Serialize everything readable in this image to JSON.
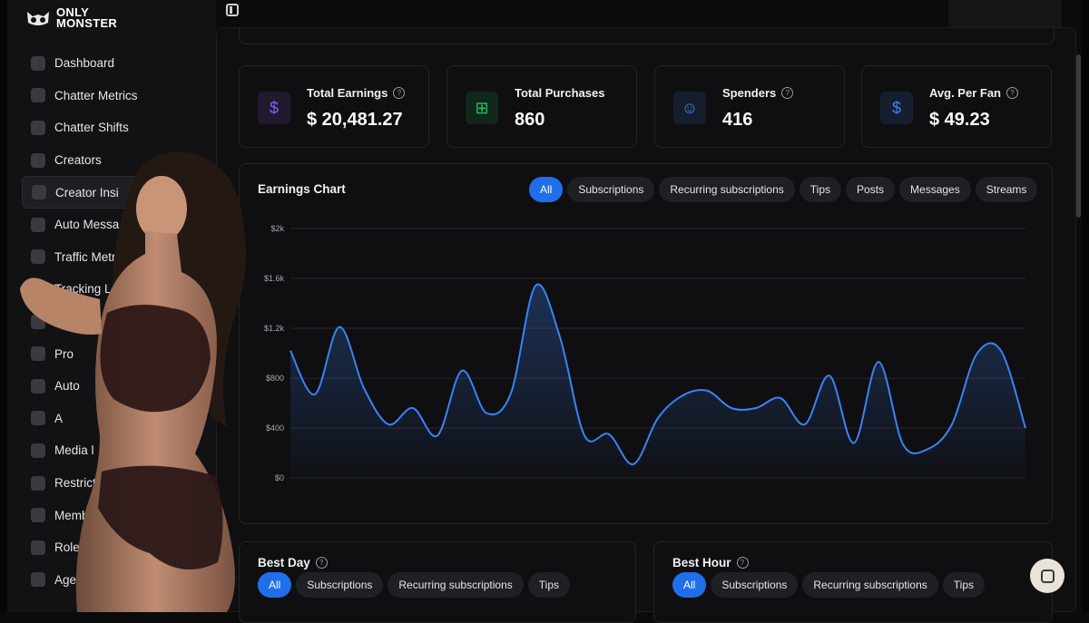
{
  "brand": {
    "name_line1": "ONLY",
    "name_line2": "MONSTER"
  },
  "sidebar": {
    "items": [
      {
        "label": "Dashboard",
        "icon": "dashboard-icon"
      },
      {
        "label": "Chatter Metrics",
        "icon": "chart-icon"
      },
      {
        "label": "Chatter Shifts",
        "icon": "calendar-icon"
      },
      {
        "label": "Creators",
        "icon": "creators-icon"
      },
      {
        "label": "Creator Insi",
        "icon": "bar-chart-icon",
        "active": true
      },
      {
        "label": "Auto Messa",
        "icon": "bolt-icon"
      },
      {
        "label": "Traffic Metr",
        "icon": "traffic-icon"
      },
      {
        "label": "Tracking L",
        "icon": "link-icon"
      },
      {
        "label": "Trial Links",
        "icon": "trial-link-icon"
      },
      {
        "label": "Pro",
        "icon": "pro-icon"
      },
      {
        "label": "Auto",
        "icon": "auto-icon"
      },
      {
        "label": "A",
        "icon": "ai-icon"
      },
      {
        "label": "Media l",
        "icon": "media-icon"
      },
      {
        "label": "Restrict",
        "icon": "restrict-icon"
      },
      {
        "label": "Membe",
        "icon": "members-icon"
      },
      {
        "label": "Roles",
        "icon": "lock-icon"
      },
      {
        "label": "Agen",
        "icon": "agency-icon"
      }
    ]
  },
  "stats": [
    {
      "label": "Total Earnings",
      "value": "$ 20,481.27",
      "icon": "dollar-icon",
      "help": true,
      "color": "#8b5cf6"
    },
    {
      "label": "Total Purchases",
      "value": "860",
      "icon": "cart-icon",
      "help": false,
      "color": "#22c55e"
    },
    {
      "label": "Spenders",
      "value": "416",
      "icon": "user-icon",
      "help": true,
      "color": "#3b82f6"
    },
    {
      "label": "Avg. Per Fan",
      "value": "$ 49.23",
      "icon": "dollar-icon",
      "help": true,
      "color": "#3b82f6"
    }
  ],
  "earnings_chart": {
    "title": "Earnings Chart",
    "filters": [
      "All",
      "Subscriptions",
      "Recurring subscriptions",
      "Tips",
      "Posts",
      "Messages",
      "Streams"
    ],
    "active_filter": "All"
  },
  "best_day": {
    "title": "Best Day",
    "filters": [
      "All",
      "Subscriptions",
      "Recurring subscriptions",
      "Tips"
    ],
    "active_filter": "All"
  },
  "best_hour": {
    "title": "Best Hour",
    "filters": [
      "All",
      "Subscriptions",
      "Recurring subscriptions",
      "Tips"
    ],
    "active_filter": "All"
  },
  "chart_data": {
    "type": "area",
    "title": "Earnings Chart",
    "xlabel": "",
    "ylabel": "",
    "ylim": [
      0,
      2000
    ],
    "y_ticks": [
      "$0",
      "$400",
      "$800",
      "$1.2k",
      "$1.6k",
      "$2k"
    ],
    "grid": true,
    "line_color": "#3b82f6",
    "values": [
      1020,
      670,
      1210,
      720,
      430,
      560,
      340,
      860,
      520,
      680,
      1540,
      1130,
      340,
      350,
      110,
      480,
      660,
      700,
      560,
      560,
      640,
      430,
      820,
      280,
      930,
      270,
      230,
      430,
      990,
      1020,
      400
    ]
  }
}
